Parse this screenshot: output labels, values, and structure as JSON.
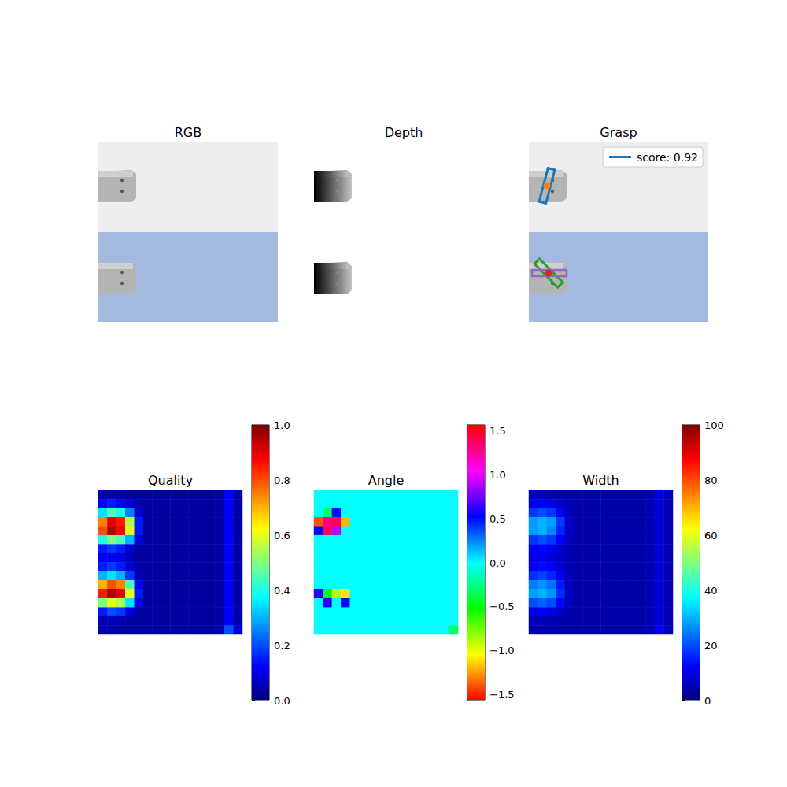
{
  "chart_data": [
    {
      "type": "image",
      "title": "RGB"
    },
    {
      "type": "image",
      "title": "Depth"
    },
    {
      "type": "image",
      "title": "Grasp",
      "legend": "upper right",
      "series": [
        {
          "name": "score: 0.92",
          "color": "#1f77b4"
        }
      ]
    },
    {
      "type": "heatmap",
      "title": "Quality",
      "color": "jet",
      "tick_labels": false,
      "colorbar_range": [
        0,
        1
      ],
      "colorbar_ticks": [
        {
          "value": 0,
          "label": "0.0"
        },
        {
          "value": 0.2,
          "label": "0.2"
        },
        {
          "value": 0.4,
          "label": "0.4"
        },
        {
          "value": 0.6,
          "label": "0.6"
        },
        {
          "value": 0.8,
          "label": "0.8"
        },
        {
          "value": 1,
          "label": "1.0"
        }
      ],
      "cells": [
        [
          0.05,
          0.05,
          0.04,
          0.03,
          0.03,
          0.03,
          0.03,
          0.03,
          0.03,
          0.03,
          0.03,
          0.03,
          0.03,
          0.04,
          0.12,
          0.04
        ],
        [
          0.12,
          0.15,
          0.12,
          0.08,
          0.04,
          0.03,
          0.03,
          0.03,
          0.03,
          0.03,
          0.03,
          0.03,
          0.03,
          0.04,
          0.12,
          0.04
        ],
        [
          0.35,
          0.45,
          0.4,
          0.25,
          0.08,
          0.03,
          0.03,
          0.03,
          0.03,
          0.03,
          0.03,
          0.03,
          0.03,
          0.04,
          0.12,
          0.04
        ],
        [
          0.75,
          0.9,
          0.85,
          0.55,
          0.15,
          0.03,
          0.03,
          0.03,
          0.03,
          0.03,
          0.03,
          0.03,
          0.03,
          0.04,
          0.12,
          0.04
        ],
        [
          0.8,
          0.95,
          0.88,
          0.6,
          0.15,
          0.03,
          0.03,
          0.03,
          0.03,
          0.03,
          0.03,
          0.03,
          0.03,
          0.04,
          0.12,
          0.04
        ],
        [
          0.4,
          0.5,
          0.45,
          0.3,
          0.08,
          0.03,
          0.03,
          0.03,
          0.03,
          0.03,
          0.03,
          0.03,
          0.03,
          0.04,
          0.12,
          0.04
        ],
        [
          0.15,
          0.18,
          0.15,
          0.08,
          0.04,
          0.03,
          0.03,
          0.03,
          0.03,
          0.03,
          0.03,
          0.03,
          0.03,
          0.04,
          0.12,
          0.04
        ],
        [
          0.12,
          0.12,
          0.1,
          0.06,
          0.03,
          0.03,
          0.03,
          0.03,
          0.03,
          0.03,
          0.03,
          0.03,
          0.03,
          0.04,
          0.12,
          0.04
        ],
        [
          0.15,
          0.18,
          0.15,
          0.08,
          0.04,
          0.03,
          0.03,
          0.03,
          0.03,
          0.03,
          0.03,
          0.03,
          0.03,
          0.04,
          0.12,
          0.04
        ],
        [
          0.3,
          0.35,
          0.3,
          0.18,
          0.06,
          0.03,
          0.03,
          0.03,
          0.03,
          0.03,
          0.03,
          0.03,
          0.03,
          0.04,
          0.12,
          0.04
        ],
        [
          0.7,
          0.8,
          0.75,
          0.45,
          0.12,
          0.03,
          0.03,
          0.03,
          0.03,
          0.03,
          0.03,
          0.03,
          0.03,
          0.04,
          0.12,
          0.04
        ],
        [
          0.85,
          0.95,
          0.9,
          0.6,
          0.15,
          0.03,
          0.03,
          0.03,
          0.03,
          0.03,
          0.03,
          0.03,
          0.03,
          0.04,
          0.12,
          0.04
        ],
        [
          0.5,
          0.6,
          0.55,
          0.35,
          0.1,
          0.03,
          0.03,
          0.03,
          0.03,
          0.03,
          0.03,
          0.03,
          0.03,
          0.04,
          0.12,
          0.04
        ],
        [
          0.15,
          0.2,
          0.18,
          0.1,
          0.04,
          0.03,
          0.03,
          0.03,
          0.03,
          0.03,
          0.03,
          0.03,
          0.03,
          0.04,
          0.12,
          0.04
        ],
        [
          0.05,
          0.06,
          0.05,
          0.04,
          0.03,
          0.03,
          0.03,
          0.03,
          0.03,
          0.03,
          0.03,
          0.03,
          0.03,
          0.04,
          0.12,
          0.04
        ],
        [
          0.04,
          0.04,
          0.03,
          0.03,
          0.03,
          0.03,
          0.03,
          0.03,
          0.03,
          0.03,
          0.03,
          0.03,
          0.03,
          0.05,
          0.2,
          0.08
        ]
      ]
    },
    {
      "type": "heatmap",
      "title": "Angle",
      "color": "hsv",
      "tick_labels": false,
      "colorbar_range": [
        -1.5708,
        1.5708
      ],
      "colorbar_ticks": [
        {
          "value": -1.5,
          "label": "−1.5"
        },
        {
          "value": -1,
          "label": "−1.0"
        },
        {
          "value": -0.5,
          "label": "−0.5"
        },
        {
          "value": 0,
          "label": "0.0"
        },
        {
          "value": 0.5,
          "label": "0.5"
        },
        {
          "value": 1,
          "label": "1.0"
        },
        {
          "value": 1.5,
          "label": "1.5"
        }
      ],
      "cells": [
        [
          0,
          0,
          0,
          0,
          0,
          0,
          0,
          0,
          0,
          0,
          0,
          0,
          0,
          0,
          0,
          0
        ],
        [
          0,
          0,
          0,
          0,
          0,
          0,
          0,
          0,
          0,
          0,
          0,
          0,
          0,
          0,
          0,
          0
        ],
        [
          0,
          -0.3,
          0.5,
          0,
          0,
          0,
          0,
          0,
          0,
          0,
          0,
          0,
          0,
          0,
          0,
          0
        ],
        [
          -1.4,
          1.3,
          1.4,
          -1.2,
          0,
          0,
          0,
          0,
          0,
          0,
          0,
          0,
          0,
          0,
          0,
          0
        ],
        [
          0.5,
          1.4,
          0.9,
          0,
          0,
          0,
          0,
          0,
          0,
          0,
          0,
          0,
          0,
          0,
          0,
          0
        ],
        [
          0,
          0,
          0,
          0,
          0,
          0,
          0,
          0,
          0,
          0,
          0,
          0,
          0,
          0,
          0,
          0
        ],
        [
          0,
          0,
          0,
          0,
          0,
          0,
          0,
          0,
          0,
          0,
          0,
          0,
          0,
          0,
          0,
          0
        ],
        [
          0,
          0,
          0,
          0,
          0,
          0,
          0,
          0,
          0,
          0,
          0,
          0,
          0,
          0,
          0,
          0
        ],
        [
          0,
          0,
          0,
          0,
          0,
          0,
          0,
          0,
          0,
          0,
          0,
          0,
          0,
          0,
          0,
          0
        ],
        [
          0,
          0,
          0,
          0,
          0,
          0,
          0,
          0,
          0,
          0,
          0,
          0,
          0,
          0,
          0,
          0
        ],
        [
          0,
          0,
          0,
          0,
          0,
          0,
          0,
          0,
          0,
          0,
          0,
          0,
          0,
          0,
          0,
          0
        ],
        [
          0.6,
          -0.5,
          -0.9,
          -1.1,
          0,
          0,
          0,
          0,
          0,
          0,
          0,
          0,
          0,
          0,
          0,
          0
        ],
        [
          0,
          0.6,
          0,
          0.5,
          0,
          0,
          0,
          0,
          0,
          0,
          0,
          0,
          0,
          0,
          0,
          0
        ],
        [
          0,
          0,
          0,
          0,
          0,
          0,
          0,
          0,
          0,
          0,
          0,
          0,
          0,
          0,
          0,
          0
        ],
        [
          0,
          0,
          0,
          0,
          0,
          0,
          0,
          0,
          0,
          0,
          0,
          0,
          0,
          0,
          0,
          0
        ],
        [
          0,
          0,
          0,
          0,
          0,
          0,
          0,
          0,
          0,
          0,
          0,
          0,
          0,
          0,
          0,
          -0.3
        ]
      ]
    },
    {
      "type": "heatmap",
      "title": "Width",
      "color": "jet",
      "tick_labels": false,
      "colorbar_range": [
        0,
        100
      ],
      "colorbar_ticks": [
        0,
        20,
        40,
        60,
        80,
        100
      ],
      "cells": [
        [
          6,
          6,
          5,
          4,
          4,
          4,
          4,
          4,
          4,
          4,
          4,
          4,
          4,
          5,
          9,
          5
        ],
        [
          10,
          12,
          10,
          7,
          5,
          4,
          4,
          4,
          4,
          4,
          4,
          4,
          4,
          5,
          9,
          5
        ],
        [
          18,
          20,
          18,
          12,
          6,
          4,
          4,
          4,
          4,
          4,
          4,
          4,
          4,
          5,
          9,
          5
        ],
        [
          28,
          30,
          28,
          18,
          7,
          4,
          4,
          4,
          4,
          4,
          4,
          4,
          4,
          5,
          9,
          5
        ],
        [
          28,
          30,
          26,
          16,
          7,
          4,
          4,
          4,
          4,
          4,
          4,
          4,
          4,
          5,
          9,
          5
        ],
        [
          18,
          20,
          18,
          12,
          6,
          4,
          4,
          4,
          4,
          4,
          4,
          4,
          4,
          5,
          9,
          5
        ],
        [
          12,
          13,
          11,
          8,
          5,
          4,
          4,
          4,
          4,
          4,
          4,
          4,
          4,
          5,
          9,
          5
        ],
        [
          10,
          11,
          9,
          7,
          5,
          4,
          4,
          4,
          4,
          4,
          4,
          4,
          4,
          5,
          9,
          5
        ],
        [
          12,
          13,
          11,
          8,
          5,
          4,
          4,
          4,
          4,
          4,
          4,
          4,
          4,
          5,
          9,
          5
        ],
        [
          17,
          19,
          16,
          11,
          6,
          4,
          4,
          4,
          4,
          4,
          4,
          4,
          4,
          5,
          9,
          5
        ],
        [
          25,
          27,
          24,
          15,
          6,
          4,
          4,
          4,
          4,
          4,
          4,
          4,
          4,
          5,
          9,
          5
        ],
        [
          28,
          30,
          27,
          17,
          7,
          4,
          4,
          4,
          4,
          4,
          4,
          4,
          4,
          5,
          9,
          5
        ],
        [
          20,
          22,
          20,
          13,
          6,
          4,
          4,
          4,
          4,
          4,
          4,
          4,
          4,
          5,
          9,
          5
        ],
        [
          11,
          12,
          10,
          7,
          5,
          4,
          4,
          4,
          4,
          4,
          4,
          4,
          4,
          5,
          9,
          5
        ],
        [
          6,
          6,
          5,
          4,
          4,
          4,
          4,
          4,
          4,
          4,
          4,
          4,
          4,
          5,
          9,
          5
        ],
        [
          4,
          4,
          4,
          4,
          4,
          4,
          4,
          4,
          4,
          4,
          4,
          4,
          4,
          5,
          12,
          6
        ]
      ]
    }
  ]
}
